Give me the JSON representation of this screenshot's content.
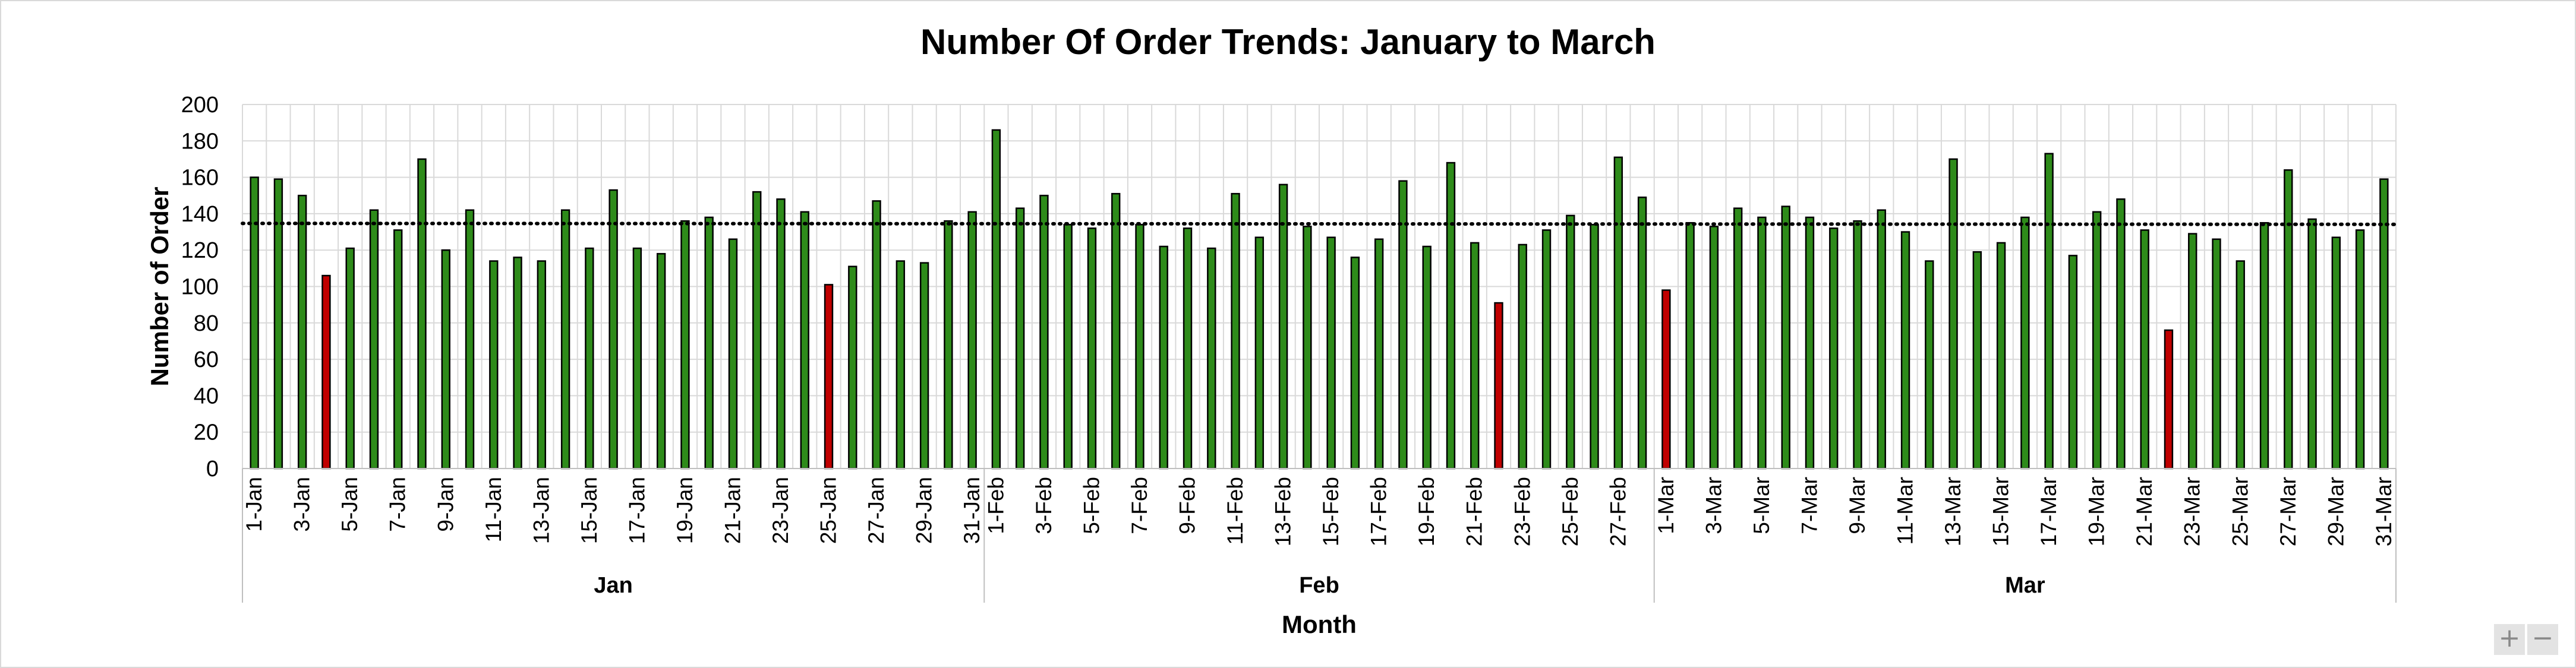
{
  "chart_data": {
    "type": "bar",
    "title": "Number Of Order Trends: January to March",
    "xlabel": "Month",
    "ylabel": "Number of Order",
    "ylim": [
      0,
      200
    ],
    "yticks": [
      0,
      20,
      40,
      60,
      80,
      100,
      120,
      140,
      160,
      180,
      200
    ],
    "grid": true,
    "trendline": {
      "style": "dotted",
      "type": "linear"
    },
    "colors": {
      "above": "#2e8b1a",
      "below": "#c00000",
      "trend": "#000000",
      "grid": "#d9d9d9"
    },
    "groups": [
      {
        "name": "Jan",
        "days": [
          "1-Jan",
          "2-Jan",
          "3-Jan",
          "4-Jan",
          "5-Jan",
          "6-Jan",
          "7-Jan",
          "8-Jan",
          "9-Jan",
          "10-Jan",
          "11-Jan",
          "12-Jan",
          "13-Jan",
          "14-Jan",
          "15-Jan",
          "16-Jan",
          "17-Jan",
          "18-Jan",
          "19-Jan",
          "20-Jan",
          "21-Jan",
          "22-Jan",
          "23-Jan",
          "24-Jan",
          "25-Jan",
          "26-Jan",
          "27-Jan",
          "28-Jan",
          "29-Jan",
          "30-Jan",
          "31-Jan"
        ],
        "values": [
          160,
          159,
          150,
          106,
          121,
          142,
          131,
          170,
          120,
          142,
          114,
          116,
          114,
          142,
          121,
          153,
          121,
          118,
          136,
          138,
          126,
          152,
          148,
          141,
          101,
          111,
          147,
          114,
          113,
          136,
          141
        ],
        "highlight": [
          false,
          false,
          false,
          true,
          false,
          false,
          false,
          false,
          false,
          false,
          false,
          false,
          false,
          false,
          false,
          false,
          false,
          false,
          false,
          false,
          false,
          false,
          false,
          false,
          true,
          false,
          false,
          false,
          false,
          false,
          false
        ]
      },
      {
        "name": "Feb",
        "days": [
          "1-Feb",
          "2-Feb",
          "3-Feb",
          "4-Feb",
          "5-Feb",
          "6-Feb",
          "7-Feb",
          "8-Feb",
          "9-Feb",
          "10-Feb",
          "11-Feb",
          "12-Feb",
          "13-Feb",
          "14-Feb",
          "15-Feb",
          "16-Feb",
          "17-Feb",
          "18-Feb",
          "19-Feb",
          "20-Feb",
          "21-Feb",
          "22-Feb",
          "23-Feb",
          "24-Feb",
          "25-Feb",
          "26-Feb",
          "27-Feb",
          "28-Feb"
        ],
        "values": [
          186,
          143,
          150,
          134,
          132,
          151,
          134,
          122,
          132,
          121,
          151,
          127,
          156,
          133,
          127,
          116,
          126,
          158,
          122,
          168,
          124,
          91,
          123,
          131,
          139,
          134,
          171,
          149
        ],
        "highlight": [
          false,
          false,
          false,
          false,
          false,
          false,
          false,
          false,
          false,
          false,
          false,
          false,
          false,
          false,
          false,
          false,
          false,
          false,
          false,
          false,
          false,
          true,
          false,
          false,
          false,
          false,
          false,
          false
        ]
      },
      {
        "name": "Mar",
        "days": [
          "1-Mar",
          "2-Mar",
          "3-Mar",
          "4-Mar",
          "5-Mar",
          "6-Mar",
          "7-Mar",
          "8-Mar",
          "9-Mar",
          "10-Mar",
          "11-Mar",
          "12-Mar",
          "13-Mar",
          "14-Mar",
          "15-Mar",
          "16-Mar",
          "17-Mar",
          "18-Mar",
          "19-Mar",
          "20-Mar",
          "21-Mar",
          "22-Mar",
          "23-Mar",
          "24-Mar",
          "25-Mar",
          "26-Mar",
          "27-Mar",
          "28-Mar",
          "29-Mar",
          "30-Mar",
          "31-Mar"
        ],
        "values": [
          98,
          135,
          133,
          143,
          138,
          144,
          138,
          132,
          136,
          142,
          130,
          114,
          170,
          119,
          124,
          138,
          173,
          117,
          141,
          148,
          131,
          76,
          129,
          126,
          114,
          135,
          164,
          137,
          127,
          131,
          159
        ],
        "highlight": [
          true,
          false,
          false,
          false,
          false,
          false,
          false,
          false,
          false,
          false,
          false,
          false,
          false,
          false,
          false,
          false,
          false,
          false,
          false,
          false,
          false,
          true,
          false,
          false,
          false,
          false,
          false,
          false,
          false,
          false,
          false
        ]
      }
    ]
  },
  "zoom": {
    "in_label": "+",
    "out_label": "−"
  }
}
